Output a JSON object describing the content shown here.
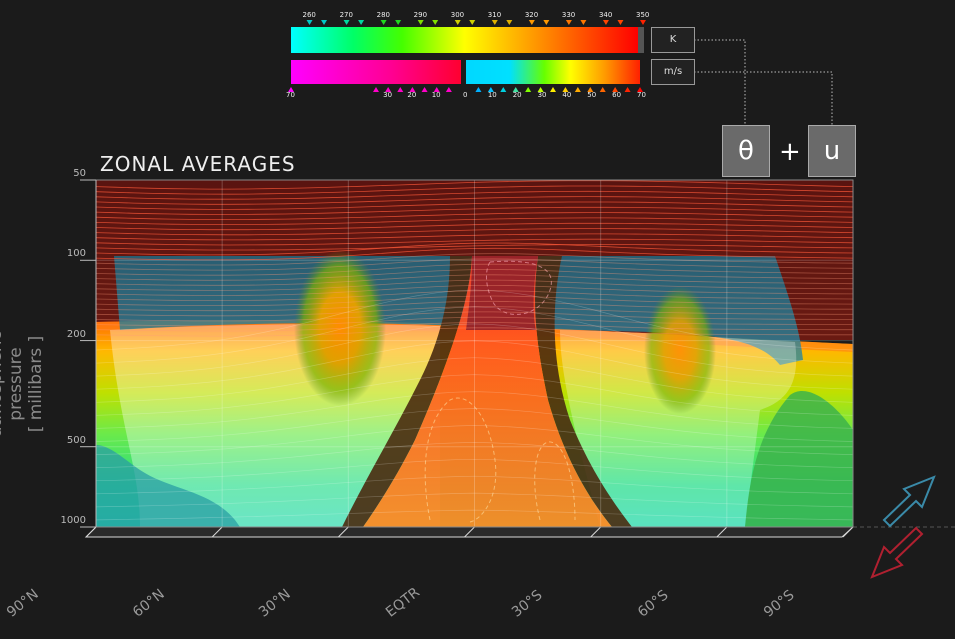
{
  "chart_data": {
    "type": "heatmap",
    "title": "ZONAL AVERAGES",
    "ylabel": "atmospheric pressure",
    "ylabel_unit": "[ millibars ]",
    "y_scale": "log",
    "y_ticks": [
      "50",
      "100",
      "200",
      "500",
      "1000"
    ],
    "x_ticks": [
      "90°N",
      "60°N",
      "30°N",
      "EQTR",
      "30°S",
      "60°S",
      "90°S"
    ],
    "variables": [
      "θ",
      "u"
    ],
    "theta_colorbar": {
      "unit": "K",
      "ticks": [
        "260",
        "270",
        "280",
        "290",
        "300",
        "310",
        "320",
        "330",
        "340",
        "350"
      ],
      "range": [
        255,
        350
      ]
    },
    "u_colorbar": {
      "unit": "m/s",
      "ticks_negative": [
        "70",
        "30",
        "20",
        "10"
      ],
      "ticks_positive": [
        "0",
        "10",
        "20",
        "30",
        "40",
        "50",
        "60",
        "70"
      ],
      "range": [
        -70,
        70
      ]
    }
  }
}
